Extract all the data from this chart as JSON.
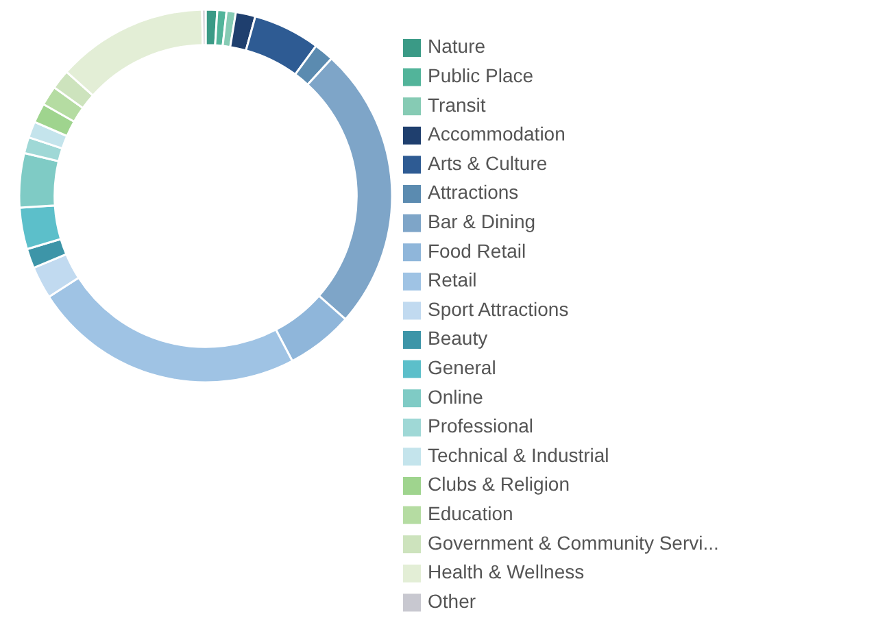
{
  "chart_data": {
    "type": "donut",
    "categories": [
      "Nature",
      "Public Place",
      "Transit",
      "Accommodation",
      "Arts & Culture",
      "Attractions",
      "Bar & Dining",
      "Food Retail",
      "Retail",
      "Sport Attractions",
      "Beauty",
      "General",
      "Online",
      "Professional",
      "Technical & Industrial",
      "Clubs & Religion",
      "Education",
      "Government & Community Servi...",
      "Health & Wellness",
      "Other"
    ],
    "values": [
      1,
      0.8,
      0.8,
      1.7,
      5.8,
      1.7,
      24.7,
      5.8,
      23.6,
      2.8,
      1.7,
      3.6,
      4.7,
      1.4,
      1.4,
      1.7,
      1.7,
      1.7,
      13.1,
      0.3
    ],
    "colors": [
      "#3a9a86",
      "#52b49a",
      "#86cbb4",
      "#1f3f6e",
      "#2e5b93",
      "#5b8bb0",
      "#7ea5c8",
      "#8fb6da",
      "#9fc3e4",
      "#c1daf0",
      "#3d95a8",
      "#5cbfca",
      "#7fcbc5",
      "#9fd8d6",
      "#c4e4ec",
      "#9fd48e",
      "#b5dca2",
      "#cde3bd",
      "#e3eed6",
      "#c8c8d0"
    ],
    "legend": "right"
  }
}
